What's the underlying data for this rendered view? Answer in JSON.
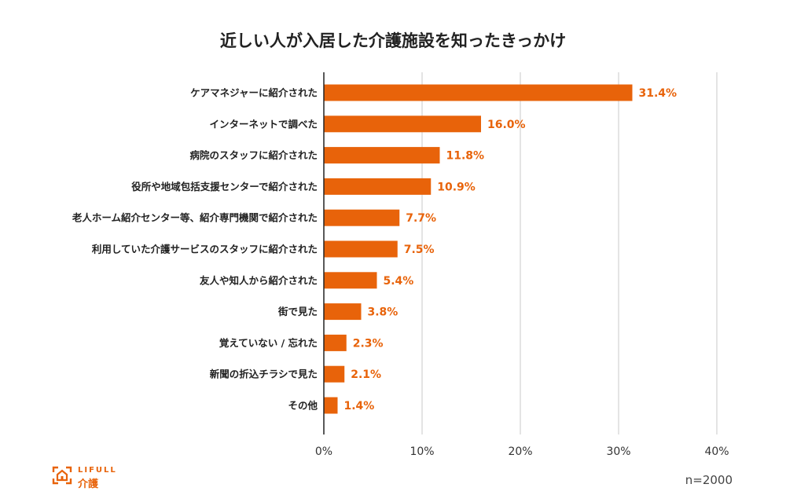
{
  "title": "近しい人が入居した介護施設を知ったきっかけ",
  "chart_data": {
    "type": "bar",
    "orientation": "horizontal",
    "title": "近しい人が入居した介護施設を知ったきっかけ",
    "categories": [
      "ケアマネジャーに紹介された",
      "インターネットで調べた",
      "病院のスタッフに紹介された",
      "役所や地域包括支援センターで紹介された",
      "老人ホーム紹介センター等、紹介専門機関で紹介された",
      "利用していた介護サービスのスタッフに紹介された",
      "友人や知人から紹介された",
      "街で見た",
      "覚えていない / 忘れた",
      "新聞の折込チラシで見た",
      "その他"
    ],
    "values": [
      31.4,
      16.0,
      11.8,
      10.9,
      7.7,
      7.5,
      5.4,
      3.8,
      2.3,
      2.1,
      1.4
    ],
    "value_labels": [
      "31.4%",
      "16.0%",
      "11.8%",
      "10.9%",
      "7.7%",
      "7.5%",
      "5.4%",
      "3.8%",
      "2.3%",
      "2.1%",
      "1.4%"
    ],
    "xlim": [
      0,
      40
    ],
    "xticks": [
      0,
      10,
      20,
      30,
      40
    ],
    "xtick_labels": [
      "0%",
      "10%",
      "20%",
      "30%",
      "40%"
    ],
    "xlabel": "",
    "ylabel": "",
    "grid": true,
    "bar_color": "#e8630a"
  },
  "footer": {
    "sample_size": "n=2000",
    "logo_brand": "LIFULL",
    "logo_sub": "介護"
  },
  "colors": {
    "accent": "#e8630a",
    "grid": "#c8c8c8",
    "axis": "#222222"
  }
}
